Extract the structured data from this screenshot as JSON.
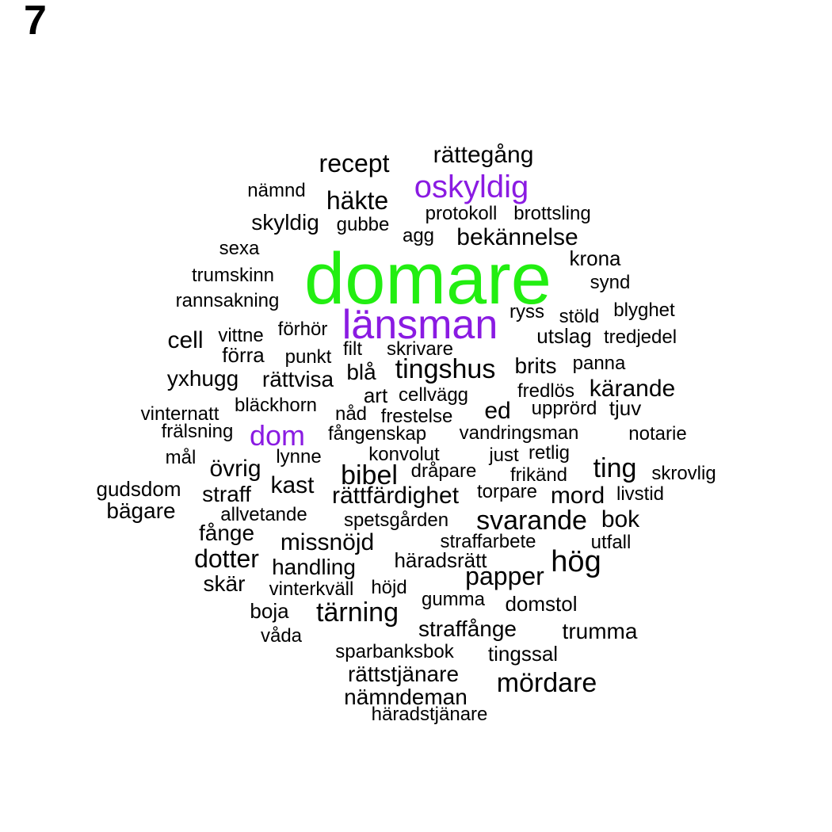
{
  "panel_label": "7",
  "colors": {
    "default": "#000000",
    "highlight": "#8a1be2",
    "top": "#22ee11"
  },
  "words": [
    {
      "text": "domare",
      "tone": "top"
    },
    {
      "text": "länsman",
      "tone": "highlight"
    },
    {
      "text": "oskyldig",
      "tone": "highlight"
    },
    {
      "text": "dom",
      "tone": "highlight"
    },
    {
      "text": "recept"
    },
    {
      "text": "rättegång"
    },
    {
      "text": "nämnd"
    },
    {
      "text": "häkte"
    },
    {
      "text": "skyldig"
    },
    {
      "text": "gubbe"
    },
    {
      "text": "protokoll"
    },
    {
      "text": "brottsling"
    },
    {
      "text": "agg"
    },
    {
      "text": "bekännelse"
    },
    {
      "text": "sexa"
    },
    {
      "text": "krona"
    },
    {
      "text": "trumskinn"
    },
    {
      "text": "synd"
    },
    {
      "text": "rannsakning"
    },
    {
      "text": "ryss"
    },
    {
      "text": "blyghet"
    },
    {
      "text": "stöld"
    },
    {
      "text": "förhör"
    },
    {
      "text": "vittne"
    },
    {
      "text": "cell"
    },
    {
      "text": "utslag"
    },
    {
      "text": "tredjedel"
    },
    {
      "text": "förra"
    },
    {
      "text": "punkt"
    },
    {
      "text": "filt"
    },
    {
      "text": "skrivare"
    },
    {
      "text": "tingshus"
    },
    {
      "text": "brits"
    },
    {
      "text": "panna"
    },
    {
      "text": "yxhugg"
    },
    {
      "text": "rättvisa"
    },
    {
      "text": "blå"
    },
    {
      "text": "art"
    },
    {
      "text": "cellvägg"
    },
    {
      "text": "fredlös"
    },
    {
      "text": "kärande"
    },
    {
      "text": "bläckhorn"
    },
    {
      "text": "vinternatt"
    },
    {
      "text": "nåd"
    },
    {
      "text": "frestelse"
    },
    {
      "text": "ed"
    },
    {
      "text": "upprörd"
    },
    {
      "text": "tjuv"
    },
    {
      "text": "frälsning"
    },
    {
      "text": "fångenskap"
    },
    {
      "text": "vandringsman"
    },
    {
      "text": "notarie"
    },
    {
      "text": "mål"
    },
    {
      "text": "lynne"
    },
    {
      "text": "konvolut"
    },
    {
      "text": "just"
    },
    {
      "text": "retlig"
    },
    {
      "text": "övrig"
    },
    {
      "text": "ting"
    },
    {
      "text": "dråpare"
    },
    {
      "text": "bibel"
    },
    {
      "text": "frikänd"
    },
    {
      "text": "skrovlig"
    },
    {
      "text": "gudsdom"
    },
    {
      "text": "kast"
    },
    {
      "text": "straff"
    },
    {
      "text": "torpare"
    },
    {
      "text": "rättfärdighet"
    },
    {
      "text": "mord"
    },
    {
      "text": "livstid"
    },
    {
      "text": "bägare"
    },
    {
      "text": "allvetande"
    },
    {
      "text": "spetsgården"
    },
    {
      "text": "svarande"
    },
    {
      "text": "bok"
    },
    {
      "text": "fånge"
    },
    {
      "text": "missnöjd"
    },
    {
      "text": "straffarbete"
    },
    {
      "text": "utfall"
    },
    {
      "text": "dotter"
    },
    {
      "text": "häradsrätt"
    },
    {
      "text": "hög"
    },
    {
      "text": "handling"
    },
    {
      "text": "papper"
    },
    {
      "text": "skär"
    },
    {
      "text": "vinterkväll"
    },
    {
      "text": "höjd"
    },
    {
      "text": "gumma"
    },
    {
      "text": "domstol"
    },
    {
      "text": "boja"
    },
    {
      "text": "tärning"
    },
    {
      "text": "straffånge"
    },
    {
      "text": "trumma"
    },
    {
      "text": "våda"
    },
    {
      "text": "sparbanksbok"
    },
    {
      "text": "tingssal"
    },
    {
      "text": "rättstjänare"
    },
    {
      "text": "mördare"
    },
    {
      "text": "nämndeman"
    },
    {
      "text": "häradstjänare"
    }
  ]
}
